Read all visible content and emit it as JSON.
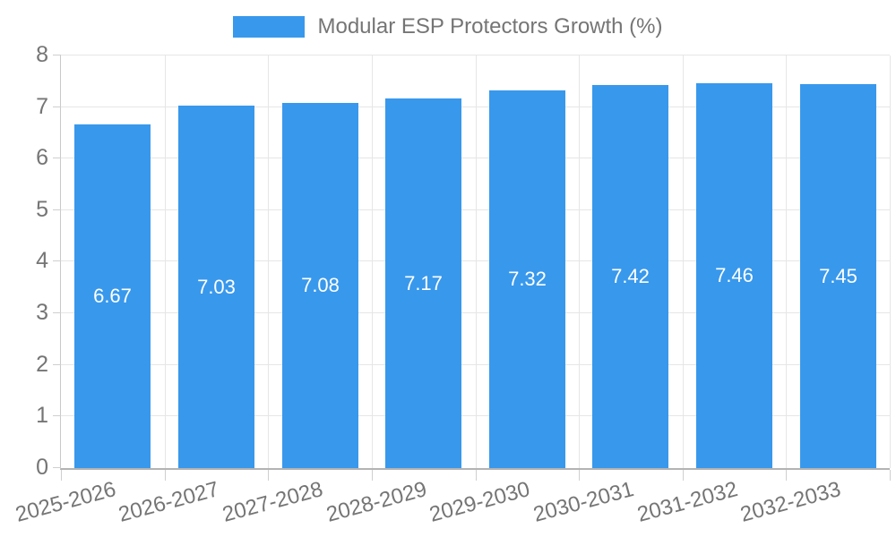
{
  "legend": {
    "label": "Modular ESP Protectors Growth (%)",
    "swatch_icon": "legend-color-swatch"
  },
  "chart_data": {
    "type": "bar",
    "title": "Modular ESP Protectors Growth (%)",
    "categories": [
      "2025-2026",
      "2026-2027",
      "2027-2028",
      "2028-2029",
      "2029-2030",
      "2030-2031",
      "2031-2032",
      "2032-2033"
    ],
    "values": [
      6.67,
      7.03,
      7.08,
      7.17,
      7.32,
      7.42,
      7.46,
      7.45
    ],
    "value_labels": [
      "6.67",
      "7.03",
      "7.08",
      "7.17",
      "7.32",
      "7.42",
      "7.46",
      "7.45"
    ],
    "xlabel": "",
    "ylabel": "",
    "ylim": [
      0,
      8
    ],
    "yticks": [
      0,
      1,
      2,
      3,
      4,
      5,
      6,
      7,
      8
    ],
    "grid": true,
    "legend_position": "top-center",
    "x_label_rotation_deg": -15,
    "colors": {
      "bar": "#3898ec",
      "bar_value_label": "#ffffff",
      "gridline": "#e6e6e6",
      "axis_line": "#b3b3b3",
      "axis_text": "#757575",
      "background": "#ffffff"
    }
  }
}
